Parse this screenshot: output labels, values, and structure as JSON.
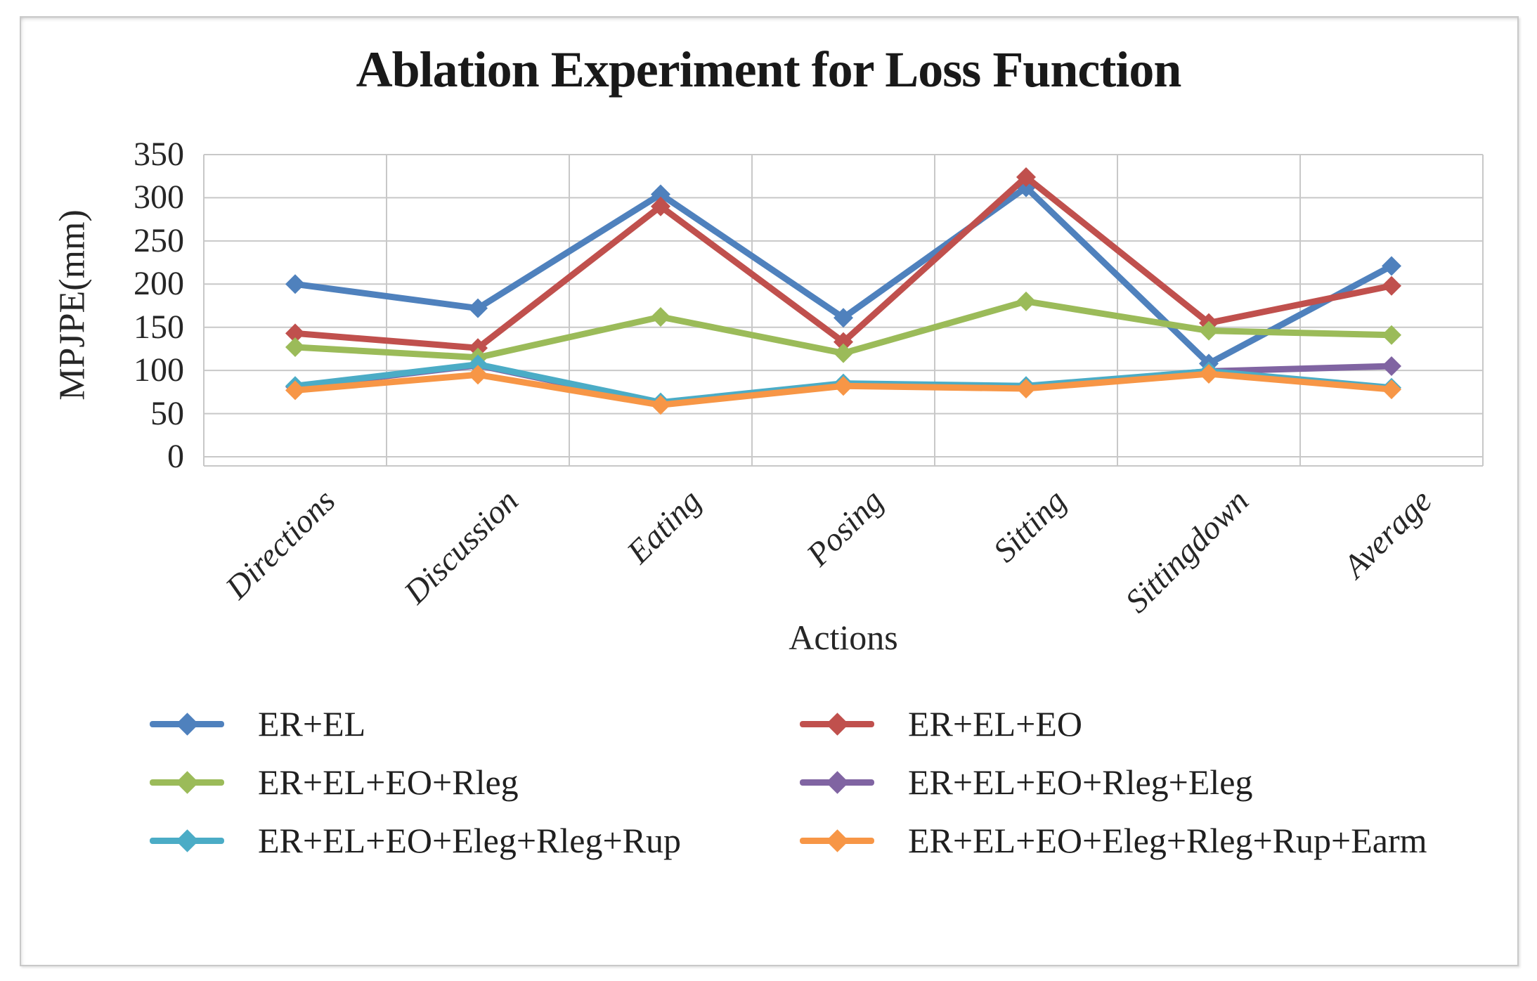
{
  "figure": {
    "background": "#ffffff",
    "frame_border_color": "#c9c9c9",
    "gridline_color": "#c8c8c8"
  },
  "chart_data": {
    "type": "line",
    "title": "Ablation Experiment for Loss Function",
    "xlabel": "Actions",
    "ylabel": "MPJPE(mm)",
    "ylim": [
      0,
      350
    ],
    "ytick_step": 50,
    "yticks": [
      350,
      300,
      250,
      200,
      150,
      100,
      50,
      0
    ],
    "grid": true,
    "marker": "diamond",
    "legend_position": "bottom, two columns",
    "categories": [
      "Directions",
      "Discussion",
      "Eating",
      "Posing",
      "Sitting",
      "Sittingdown",
      "Average"
    ],
    "series": [
      {
        "name": "ER+EL",
        "color": "#4F81BD",
        "values": [
          200,
          172,
          304,
          161,
          312,
          108,
          221
        ]
      },
      {
        "name": "ER+EL+EO",
        "color": "#C0504D",
        "values": [
          143,
          126,
          290,
          133,
          324,
          155,
          198
        ]
      },
      {
        "name": "ER+EL+EO+Rleg",
        "color": "#9BBB59",
        "values": [
          127,
          115,
          162,
          120,
          180,
          146,
          141
        ]
      },
      {
        "name": "ER+EL+EO+Rleg+Eleg",
        "color": "#8064A2",
        "values": [
          81,
          106,
          62,
          84,
          81,
          99,
          105
        ]
      },
      {
        "name": "ER+EL+EO+Eleg+Rleg+Rup",
        "color": "#4BACC6",
        "values": [
          82,
          107,
          63,
          85,
          82,
          99,
          80
        ]
      },
      {
        "name": "ER+EL+EO+Eleg+Rleg+Rup+Earm",
        "color": "#F79646",
        "values": [
          77,
          95,
          60,
          82,
          79,
          96,
          78
        ]
      }
    ]
  }
}
